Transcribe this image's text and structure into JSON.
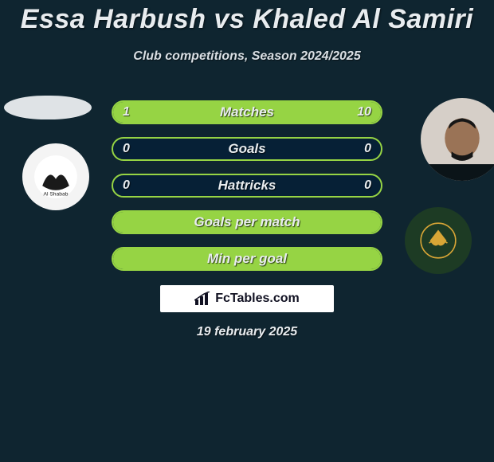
{
  "title": "Essa Harbush vs Khaled Al Samiri",
  "subtitle": "Club competitions, Season 2024/2025",
  "brand": "FcTables.com",
  "date": "19 february 2025",
  "players": {
    "left": {
      "name": "Essa Harbush",
      "club": "Al Shabab"
    },
    "right": {
      "name": "Khaled Al Samiri",
      "club": "Khaleej FC"
    }
  },
  "colors": {
    "background": "#0f2530",
    "bar_fill": "#96d444",
    "bar_border": "#96d444",
    "bar_track": "#062036",
    "text": "#e8ecef",
    "brand_bg": "#ffffff",
    "club_right_bg": "#1d3b24",
    "club_right_accent": "#d8a536",
    "club_left_bg": "#f4f4f4",
    "club_left_fg": "#1a1a1a",
    "photo_left_bg": "#dfe3e6",
    "photo_right_bg": "#d6cfc8"
  },
  "typography": {
    "title_fontsize": 34,
    "subtitle_fontsize": 16,
    "barlabel_fontsize": 17,
    "value_fontsize": 16,
    "date_fontsize": 16,
    "italic": true,
    "weight": 700
  },
  "bars": [
    {
      "label": "Matches",
      "left_val": "1",
      "right_val": "10",
      "left_pct": 9,
      "right_pct": 91,
      "show_vals": true
    },
    {
      "label": "Goals",
      "left_val": "0",
      "right_val": "0",
      "left_pct": 0,
      "right_pct": 0,
      "show_vals": true
    },
    {
      "label": "Hattricks",
      "left_val": "0",
      "right_val": "0",
      "left_pct": 0,
      "right_pct": 0,
      "show_vals": true
    },
    {
      "label": "Goals per match",
      "left_val": "",
      "right_val": "",
      "left_pct": 100,
      "right_pct": 0,
      "show_vals": false
    },
    {
      "label": "Min per goal",
      "left_val": "",
      "right_val": "",
      "left_pct": 100,
      "right_pct": 0,
      "show_vals": false
    }
  ]
}
